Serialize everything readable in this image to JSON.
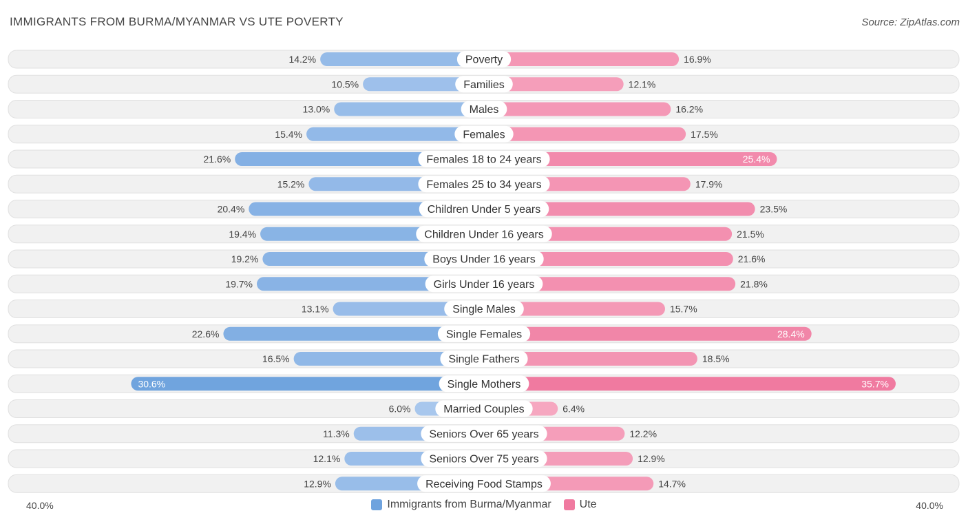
{
  "header": {
    "title": "IMMIGRANTS FROM BURMA/MYANMAR VS UTE POVERTY",
    "source": "Source: ZipAtlas.com"
  },
  "colors": {
    "left": "#6fa3de",
    "right": "#f07aa0",
    "left_light": "#aac8ee",
    "right_light": "#f6a9c2"
  },
  "chart_data": {
    "type": "bar",
    "orientation": "horizontal-diverging",
    "title": "IMMIGRANTS FROM BURMA/MYANMAR VS UTE POVERTY",
    "axis_min_label": "40.0%",
    "axis_max_label": "40.0%",
    "xlim": [
      0,
      40
    ],
    "categories": [
      "Poverty",
      "Families",
      "Males",
      "Females",
      "Females 18 to 24 years",
      "Females 25 to 34 years",
      "Children Under 5 years",
      "Children Under 16 years",
      "Boys Under 16 years",
      "Girls Under 16 years",
      "Single Males",
      "Single Females",
      "Single Fathers",
      "Single Mothers",
      "Married Couples",
      "Seniors Over 65 years",
      "Seniors Over 75 years",
      "Receiving Food Stamps"
    ],
    "series": [
      {
        "name": "Immigrants from Burma/Myanmar",
        "values": [
          14.2,
          10.5,
          13.0,
          15.4,
          21.6,
          15.2,
          20.4,
          19.4,
          19.2,
          19.7,
          13.1,
          22.6,
          16.5,
          30.6,
          6.0,
          11.3,
          12.1,
          12.9
        ],
        "labels": [
          "14.2%",
          "10.5%",
          "13.0%",
          "15.4%",
          "21.6%",
          "15.2%",
          "20.4%",
          "19.4%",
          "19.2%",
          "19.7%",
          "13.1%",
          "22.6%",
          "16.5%",
          "30.6%",
          "6.0%",
          "11.3%",
          "12.1%",
          "12.9%"
        ]
      },
      {
        "name": "Ute",
        "values": [
          16.9,
          12.1,
          16.2,
          17.5,
          25.4,
          17.9,
          23.5,
          21.5,
          21.6,
          21.8,
          15.7,
          28.4,
          18.5,
          35.7,
          6.4,
          12.2,
          12.9,
          14.7
        ],
        "labels": [
          "16.9%",
          "12.1%",
          "16.2%",
          "17.5%",
          "25.4%",
          "17.9%",
          "23.5%",
          "21.5%",
          "21.6%",
          "21.8%",
          "15.7%",
          "28.4%",
          "18.5%",
          "35.7%",
          "6.4%",
          "12.2%",
          "12.9%",
          "14.7%"
        ]
      }
    ],
    "legend": [
      "Immigrants from Burma/Myanmar",
      "Ute"
    ]
  }
}
